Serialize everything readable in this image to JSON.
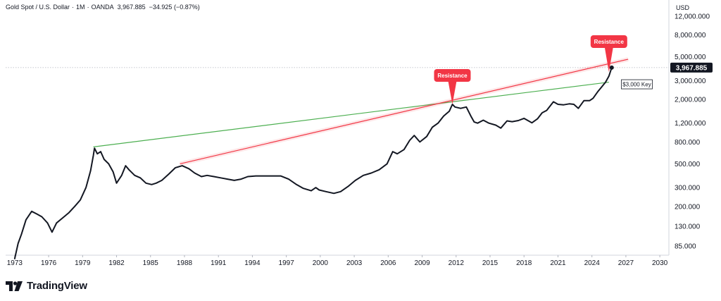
{
  "header": {
    "symbol": "Gold Spot / U.S. Dollar",
    "interval": "1M",
    "exchange": "OANDA",
    "last": "3,967.885",
    "change": "−34.925 (−0.87%)"
  },
  "currency": "USD",
  "brand": {
    "name": "TradingView"
  },
  "colors": {
    "price_line": "#131722",
    "support_line": "#4caf50",
    "resistance_line": "#f23645",
    "callout": "#f23645",
    "price_tag": "#131722"
  },
  "chart_data": {
    "type": "line",
    "title": "Gold Spot / U.S. Dollar",
    "scale": "log",
    "ylim": [
      70,
      17000
    ],
    "xlim": [
      1972.2,
      2030.8
    ],
    "x_ticks": [
      "1973",
      "1976",
      "1979",
      "1982",
      "1985",
      "1988",
      "1991",
      "1994",
      "1997",
      "2000",
      "2003",
      "2006",
      "2009",
      "2012",
      "2015",
      "2018",
      "2021",
      "2024",
      "2027",
      "2030"
    ],
    "y_ticks": [
      "12,000.000",
      "8,000.000",
      "5,000.000",
      "3,000.000",
      "2,000.000",
      "1,200.000",
      "800.000",
      "500.000",
      "300.000",
      "200.000",
      "130.000",
      "85.000"
    ],
    "last_price_label": "3,967.885",
    "series": [
      {
        "x": [
          1973.0,
          1973.3,
          1973.6,
          1974.0,
          1974.5,
          1974.95,
          1975.4,
          1975.9,
          1976.3,
          1976.7,
          1977.2,
          1977.8,
          1978.3,
          1978.8,
          1979.3,
          1979.7,
          1979.95,
          1980.05,
          1980.3,
          1980.6,
          1980.9,
          1981.3,
          1981.7,
          1982.0,
          1982.45,
          1982.8,
          1983.1,
          1983.6,
          1984.1,
          1984.6,
          1985.1,
          1985.5,
          1986.0,
          1986.6,
          1987.2,
          1987.8,
          1988.4,
          1988.9,
          1989.5,
          1990.0,
          1990.6,
          1991.2,
          1991.8,
          1992.4,
          1993.0,
          1993.6,
          1994.3,
          1995.0,
          1995.8,
          1996.5,
          1997.2,
          1997.9,
          1998.5,
          1999.2,
          1999.6,
          1999.9,
          2000.5,
          2001.2,
          2001.8,
          2002.5,
          2003.1,
          2003.8,
          2004.5,
          2005.2,
          2005.9,
          2006.4,
          2006.8,
          2007.4,
          2007.9,
          2008.3,
          2008.8,
          2009.4,
          2009.9,
          2010.4,
          2010.9,
          2011.4,
          2011.67,
          2011.9,
          2012.4,
          2012.9,
          2013.3,
          2013.6,
          2013.9,
          2014.4,
          2014.9,
          2015.5,
          2015.95,
          2016.5,
          2016.95,
          2017.5,
          2018.0,
          2018.7,
          2019.2,
          2019.6,
          2020.0,
          2020.6,
          2021.0,
          2021.5,
          2022.0,
          2022.4,
          2022.8,
          2023.3,
          2023.8,
          2024.1,
          2024.5,
          2024.9,
          2025.2,
          2025.5,
          2025.75
        ],
        "y": [
          65,
          90,
          110,
          150,
          180,
          170,
          160,
          140,
          115,
          140,
          155,
          175,
          200,
          230,
          300,
          430,
          600,
          700,
          620,
          650,
          550,
          500,
          420,
          330,
          390,
          480,
          440,
          390,
          370,
          330,
          320,
          330,
          350,
          400,
          460,
          480,
          450,
          410,
          380,
          390,
          380,
          370,
          360,
          350,
          360,
          380,
          385,
          385,
          385,
          385,
          360,
          320,
          295,
          280,
          300,
          285,
          275,
          265,
          275,
          310,
          350,
          390,
          410,
          440,
          500,
          650,
          620,
          680,
          830,
          920,
          800,
          900,
          1100,
          1200,
          1400,
          1550,
          1800,
          1700,
          1650,
          1700,
          1400,
          1230,
          1200,
          1280,
          1200,
          1150,
          1080,
          1260,
          1240,
          1270,
          1330,
          1210,
          1320,
          1500,
          1580,
          1900,
          1800,
          1780,
          1820,
          1800,
          1650,
          1950,
          1950,
          2050,
          2350,
          2650,
          2900,
          3300,
          3967.885
        ]
      }
    ],
    "trendlines": [
      {
        "role": "support",
        "from": [
          1979.95,
          720
        ],
        "to": [
          2025.5,
          2900
        ]
      },
      {
        "role": "resistance",
        "from": [
          1987.6,
          500
        ],
        "to": [
          2027.2,
          4750
        ]
      }
    ],
    "annotations": [
      {
        "text": "Resistance",
        "x": 2011.67
      },
      {
        "text": "Resistance",
        "x": 2025.5
      },
      {
        "text": "$3,000 Key"
      }
    ]
  }
}
